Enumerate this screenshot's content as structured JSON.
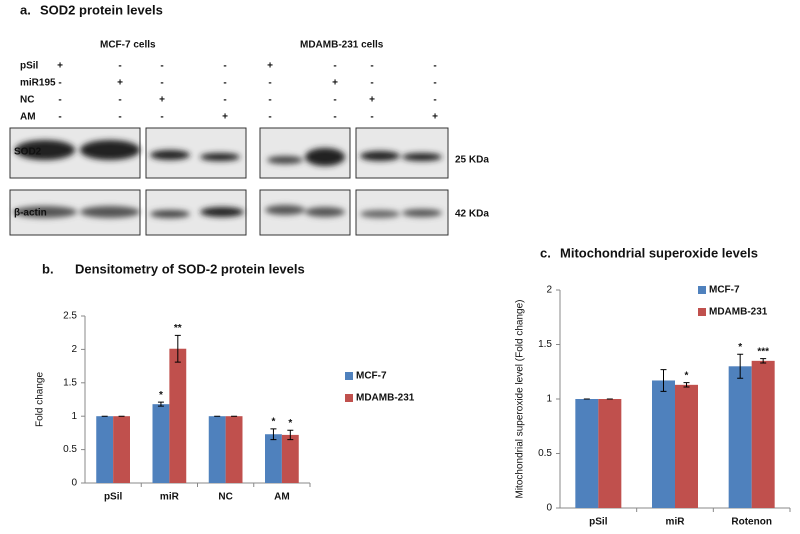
{
  "panel_a": {
    "label": "a.",
    "title": "SOD2 protein levels",
    "groups": [
      "MCF-7 cells",
      "MDAMB-231 cells"
    ],
    "rows": [
      {
        "name": "pSil",
        "marks": [
          "+",
          "-",
          "-",
          "-",
          "+",
          "-",
          "-",
          "-"
        ]
      },
      {
        "name": "miR195",
        "marks": [
          "-",
          "+",
          "-",
          "-",
          "-",
          "+",
          "-",
          "-"
        ]
      },
      {
        "name": "NC",
        "marks": [
          "-",
          "-",
          "+",
          "-",
          "-",
          "-",
          "+",
          "-"
        ]
      },
      {
        "name": "AM",
        "marks": [
          "-",
          "-",
          "-",
          "+",
          "-",
          "-",
          "-",
          "+"
        ]
      }
    ],
    "bands": [
      "SOD2",
      "β-actin"
    ],
    "sizes": [
      "25 KDa",
      "42 KDa"
    ]
  },
  "chart_data": [
    {
      "type": "bar",
      "label": "b.",
      "title": "Densitometry of SOD-2 protein levels",
      "ylabel": "Fold change",
      "categories": [
        "pSil",
        "miR",
        "NC",
        "AM"
      ],
      "series": [
        {
          "name": "MCF-7",
          "color": "#4f81bd",
          "values": [
            1,
            1.18,
            1,
            0.73
          ],
          "errors": [
            0,
            0.03,
            0,
            0.08
          ],
          "stars": [
            null,
            "*",
            null,
            "*"
          ]
        },
        {
          "name": "MDAMB-231",
          "color": "#c0504d",
          "values": [
            1,
            2.01,
            1,
            0.72
          ],
          "errors": [
            0,
            0.2,
            0,
            0.07
          ],
          "stars": [
            null,
            "**",
            null,
            "*"
          ]
        }
      ],
      "ylim": [
        0,
        2.5
      ],
      "yticks": [
        0,
        0.5,
        1,
        1.5,
        2,
        2.5
      ]
    },
    {
      "type": "bar",
      "label": "c.",
      "title": "Mitochondrial superoxide levels",
      "ylabel": "Mitochondrial superoxide level (Fold change)",
      "categories": [
        "pSil",
        "miR",
        "Rotenon"
      ],
      "series": [
        {
          "name": "MCF-7",
          "color": "#4f81bd",
          "values": [
            1,
            1.17,
            1.3
          ],
          "errors": [
            0,
            0.1,
            0.11
          ],
          "stars": [
            null,
            null,
            "*"
          ]
        },
        {
          "name": "MDAMB-231",
          "color": "#c0504d",
          "values": [
            1,
            1.13,
            1.35
          ],
          "errors": [
            0,
            0.02,
            0.02
          ],
          "stars": [
            null,
            "*",
            "***"
          ]
        }
      ],
      "ylim": [
        0,
        2
      ],
      "yticks": [
        0,
        0.5,
        1,
        1.5,
        2
      ]
    }
  ]
}
